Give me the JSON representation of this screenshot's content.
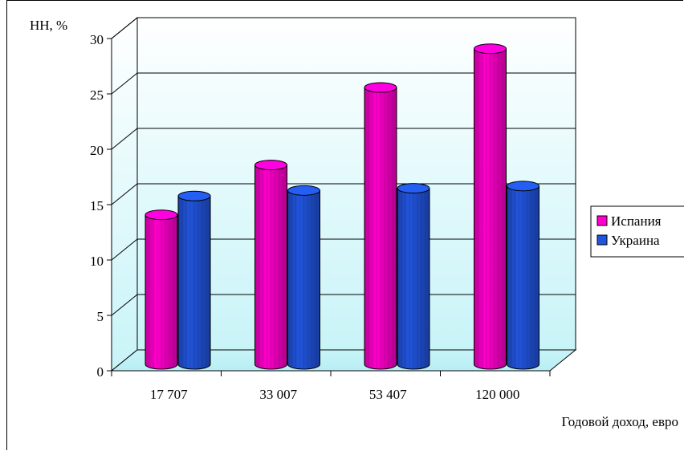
{
  "chart_data": {
    "type": "bar",
    "ylabel": "НН, %",
    "xlabel": "Годовой доход, евро",
    "categories": [
      "17 707",
      "33 007",
      "53 407",
      "120 000"
    ],
    "ylim": [
      0,
      30
    ],
    "yticks": [
      "0",
      "5",
      "10",
      "15",
      "20",
      "25",
      "30"
    ],
    "grid": true,
    "legend_position": "right",
    "series": [
      {
        "name": "Испания",
        "color": "#ff00cc",
        "values": [
          13.5,
          18,
          25,
          28.5
        ]
      },
      {
        "name": "Украина",
        "color": "#2255dd",
        "values": [
          15.2,
          15.7,
          15.9,
          16.1
        ]
      }
    ]
  }
}
